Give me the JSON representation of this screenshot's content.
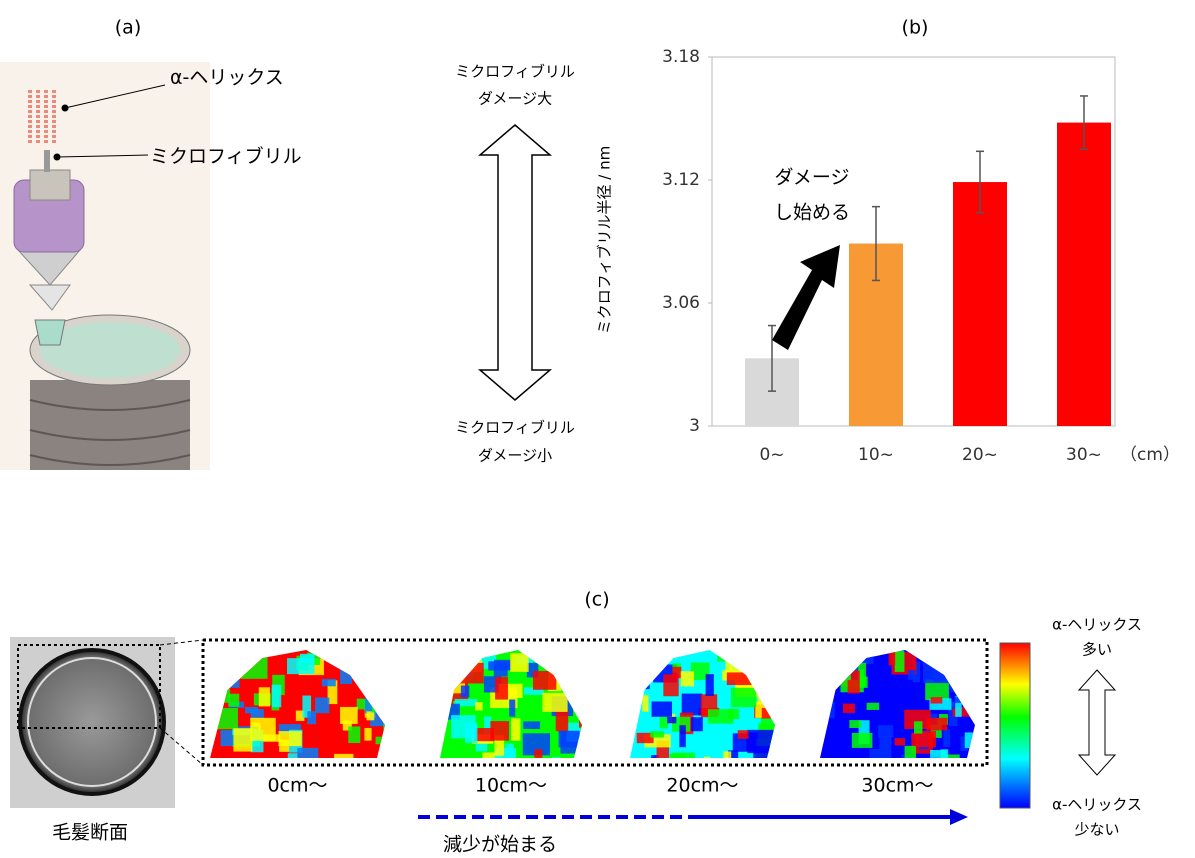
{
  "panel_a": {
    "label": "(a)",
    "helix": "α-ヘリックス",
    "microfibril": "ミクロフィブリル"
  },
  "scale_arrow": {
    "top": [
      "ミクロフィブリル",
      "ダメージ大"
    ],
    "bottom": [
      "ミクロフィブリル",
      "ダメージ小"
    ]
  },
  "chart_data": {
    "type": "bar",
    "title": "(b)",
    "y_label": "ミクロフィブリル半径 / nm",
    "categories": [
      "0~",
      "10~",
      "20~",
      "30~"
    ],
    "x_unit": "（cm）",
    "values": [
      3.033,
      3.089,
      3.119,
      3.148
    ],
    "errors": [
      0.016,
      0.018,
      0.015,
      0.013
    ],
    "colors": [
      "#d9d9d9",
      "#f79a35",
      "#ff0000",
      "#ff0000"
    ],
    "ylim": [
      3,
      3.18
    ],
    "yticks": [
      3,
      3.06,
      3.12,
      3.18
    ],
    "annotation": [
      "ダメージ",
      "し始める"
    ]
  },
  "panel_c": {
    "label": "(c)",
    "cross_section": "毛髪断面",
    "maps": [
      "0cm～",
      "10cm～",
      "20cm～",
      "30cm～"
    ],
    "trend": "減少が始まる",
    "colorbar_top": [
      "α-ヘリックス",
      "多い"
    ],
    "colorbar_bottom": [
      "α-ヘリックス",
      "少ない"
    ]
  }
}
